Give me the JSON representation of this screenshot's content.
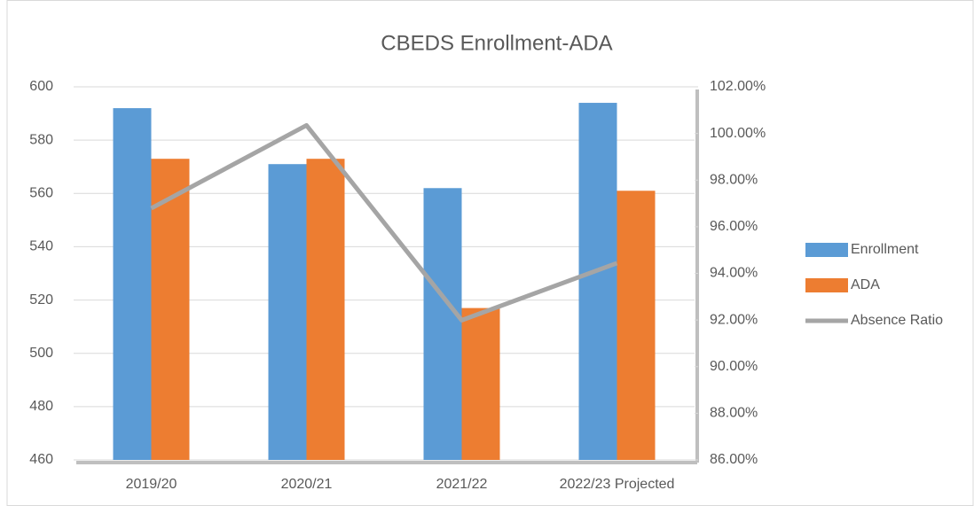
{
  "chart_data": {
    "type": "bar",
    "title": "CBEDS Enrollment-ADA",
    "categories": [
      "2019/20",
      "2020/21",
      "2021/22",
      "2022/23 Projected"
    ],
    "series": [
      {
        "name": "Enrollment",
        "color": "#5b9bd5",
        "values": [
          592,
          571,
          562,
          594
        ]
      },
      {
        "name": "ADA",
        "color": "#ed7d31",
        "values": [
          573,
          573,
          517,
          561
        ]
      },
      {
        "name": "Absence Ratio",
        "color": "#a5a5a5",
        "axis": "y2",
        "type": "line",
        "values": [
          96.79,
          100.35,
          91.99,
          94.44
        ]
      }
    ],
    "ylim": [
      460,
      600
    ],
    "yticks": [
      460,
      480,
      500,
      520,
      540,
      560,
      580,
      600
    ],
    "y2lim": [
      86,
      102
    ],
    "y2ticks": [
      {
        "value": 86,
        "label": "86.00%"
      },
      {
        "value": 88,
        "label": "88.00%"
      },
      {
        "value": 90,
        "label": "90.00%"
      },
      {
        "value": 92,
        "label": "92.00%"
      },
      {
        "value": 94,
        "label": "94.00%"
      },
      {
        "value": 96,
        "label": "96.00%"
      },
      {
        "value": 98,
        "label": "98.00%"
      },
      {
        "value": 100,
        "label": "100.00%"
      },
      {
        "value": 102,
        "label": "102.00%"
      }
    ],
    "grid": true,
    "legend": "right"
  }
}
